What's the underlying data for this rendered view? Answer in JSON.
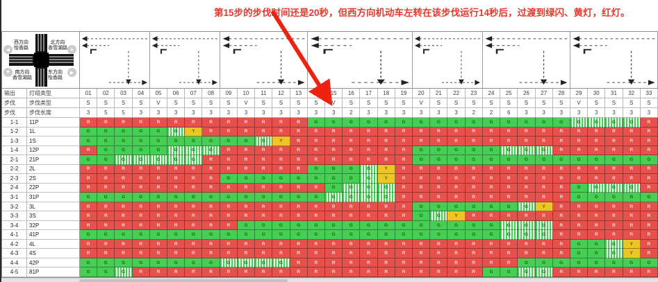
{
  "annotation": {
    "text": "第15步的步伐时间还是20秒，但西方向机动车左转在该步伐运行14秒后，过渡到绿闪、黄灯，红灯。",
    "color": "#e6392b",
    "arrow_color": "#ee2211",
    "arrow_points_to_column": "15"
  },
  "legend": {
    "labels": {
      "top_left": "西方向\n怡香路",
      "top_right": "北方向\n香雪湖路",
      "bottom_left": "南方向\n香雪湖路",
      "bottom_right": "东方向\n怡香路"
    },
    "nav": [
      {
        "dir": "left",
        "glyph": "◀"
      },
      {
        "dir": "up",
        "glyph": "▲"
      },
      {
        "dir": "down",
        "glyph": "▼"
      },
      {
        "dir": "right",
        "glyph": "▶"
      }
    ]
  },
  "header": {
    "rows_meta": [
      {
        "c1": "输出",
        "c2": "灯组类型"
      },
      {
        "c1": "步伐",
        "c2": "步伐类型"
      },
      {
        "c1": "步伐",
        "c2": "步伐长度"
      }
    ],
    "columns": [
      "01",
      "02",
      "03",
      "04",
      "05",
      "06",
      "07",
      "08",
      "09",
      "10",
      "11",
      "12",
      "13",
      "14",
      "15",
      "16",
      "17",
      "18",
      "19",
      "20",
      "21",
      "22",
      "23",
      "24",
      "25",
      "26",
      "27",
      "28",
      "29",
      "30",
      "31",
      "32",
      "33"
    ],
    "step_types": [
      "S",
      "S",
      "S",
      "S",
      "V",
      "S",
      "S",
      "S",
      "S",
      "V",
      "S",
      "S",
      "S",
      "S",
      "V",
      "S",
      "S",
      "S",
      "S",
      "V",
      "S",
      "S",
      "S",
      "S",
      "S",
      "S",
      "S",
      "S",
      "V",
      "S",
      "S",
      "S",
      "S"
    ],
    "step_lengths": [
      "3",
      "5",
      "5",
      "3",
      "3",
      "3",
      "3",
      "3",
      "3",
      "3",
      "3",
      "3",
      "3",
      "3",
      "3",
      "2",
      "3",
      "3",
      "3",
      "3",
      "3",
      "3",
      "2",
      "2",
      "6",
      "3",
      "3",
      "3",
      "3",
      "3",
      "3",
      "3",
      "3"
    ]
  },
  "stage_panels": [
    {
      "id": "stage-1",
      "cols": "01-04"
    },
    {
      "id": "stage-2",
      "cols": "05-08"
    },
    {
      "id": "stage-3",
      "cols": "09-13"
    },
    {
      "id": "stage-4",
      "cols": "14-19"
    },
    {
      "id": "stage-5",
      "cols": "20-23"
    },
    {
      "id": "stage-6",
      "cols": "24-28"
    },
    {
      "id": "stage-7",
      "cols": "29-33"
    }
  ],
  "signals": {
    "state_legend": {
      "R": "red",
      "G": "green",
      "F": "green-flash",
      "Y": "yellow"
    },
    "glyphs": {
      "R": "R",
      "G": "G",
      "F": "G",
      "Y": "Y"
    },
    "rows": [
      {
        "id": "1-1",
        "group": "11P",
        "pattern": "R13 G15 F4 R1"
      },
      {
        "id": "1-2",
        "group": "1L",
        "pattern": "G5 F1 Y1 R26"
      },
      {
        "id": "1-3",
        "group": "1S",
        "pattern": "G10 F1 Y1 R21"
      },
      {
        "id": "1-4",
        "group": "12P",
        "pattern": "R1 G4 F3 R11 G5 F3 R6"
      },
      {
        "id": "2-1",
        "group": "21P",
        "pattern": "G2 F5 R12 G14"
      },
      {
        "id": "2-2",
        "group": "2L",
        "pattern": "R13 G3 F1 Y1 R15"
      },
      {
        "id": "2-3",
        "group": "2S",
        "pattern": "R8 G8 F1 Y1 R15"
      },
      {
        "id": "2-4",
        "group": "22P",
        "pattern": "R14 G1 F3 R10 G1 F3 R1"
      },
      {
        "id": "3-1",
        "group": "31P",
        "pattern": "G14 F4 R10 G5"
      },
      {
        "id": "3-2",
        "group": "3L",
        "pattern": "R19 G6 F1 Y1 R6"
      },
      {
        "id": "3-3",
        "group": "3S",
        "pattern": "R19 G1 F1 Y1 R11"
      },
      {
        "id": "3-4",
        "group": "32P",
        "pattern": "R9 G15 F3 R6"
      },
      {
        "id": "4-1",
        "group": "41P",
        "pattern": "G24 F3 R6"
      },
      {
        "id": "4-2",
        "group": "4L",
        "pattern": "R28 G2 F1 Y1 R1"
      },
      {
        "id": "4-3",
        "group": "4S",
        "pattern": "R28 G2 F1 Y1 R1"
      },
      {
        "id": "4-4",
        "group": "42P",
        "pattern": "G8 F4 R13 G8"
      },
      {
        "id": "4-5",
        "group": "81P",
        "pattern": "G2 F1 R20 G2 F2 R6"
      }
    ]
  },
  "colors": {
    "red_cell": "#e8504b",
    "green_cell": "#46cf54",
    "yellow_cell": "#ecc527",
    "green_flash_stripe": "#f0fff0",
    "annotation_red": "#e6392b"
  }
}
